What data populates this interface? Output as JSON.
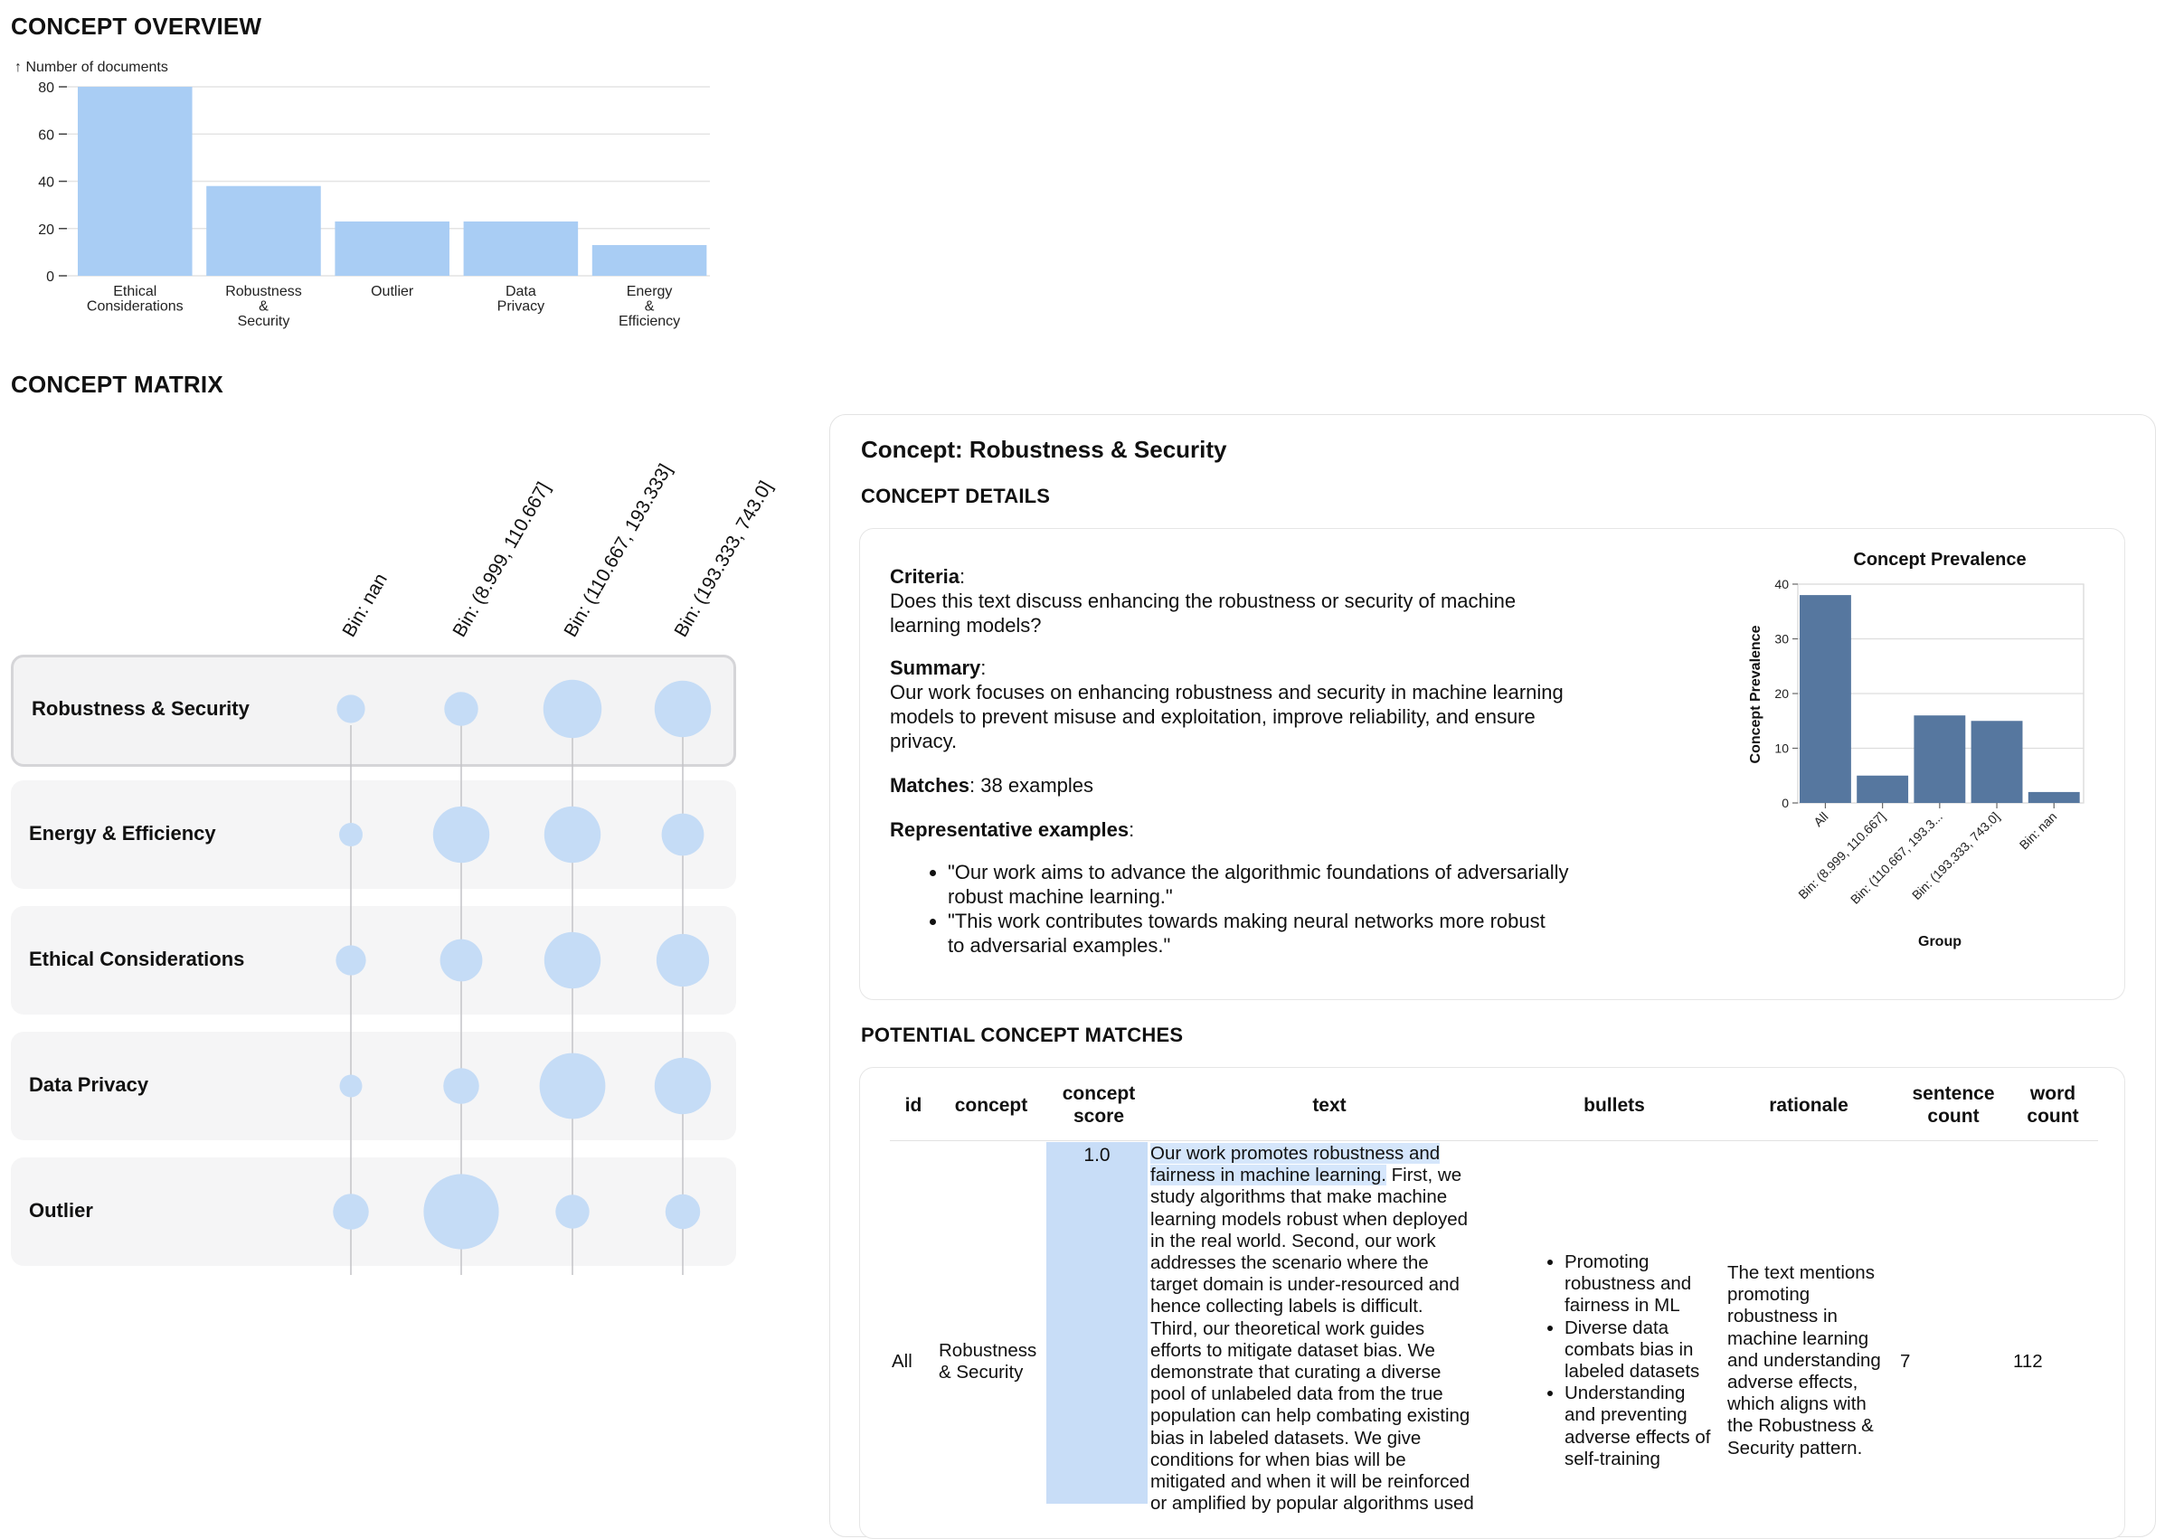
{
  "overview": {
    "title": "CONCEPT OVERVIEW",
    "ylabel": "↑ Number of documents"
  },
  "chart_data": [
    {
      "type": "bar",
      "title": "",
      "ylabel": "Number of documents",
      "xlabel": "",
      "categories": [
        [
          "Ethical",
          "Considerations"
        ],
        [
          "Robustness",
          "&",
          "Security"
        ],
        [
          "Outlier"
        ],
        [
          "Data",
          "Privacy"
        ],
        [
          "Energy",
          "&",
          "Efficiency"
        ]
      ],
      "values": [
        80,
        38,
        23,
        23,
        13
      ],
      "ylim": [
        0,
        80
      ],
      "yticks": [
        0,
        20,
        40,
        60,
        80
      ],
      "grid": true,
      "color": "#a9cdf4"
    },
    {
      "type": "bar",
      "title": "Concept Prevalence",
      "xlabel": "Group",
      "ylabel": "Concept Prevalence",
      "categories": [
        "All",
        "Bin: (8.999, 110.667]",
        "Bin: (110.667, 193.3...",
        "Bin: (193.333, 743.0]",
        "Bin: nan"
      ],
      "values": [
        38,
        5,
        16,
        15,
        2
      ],
      "ylim": [
        0,
        40
      ],
      "yticks": [
        0,
        10,
        20,
        30,
        40
      ],
      "grid": true,
      "color": "#56779f"
    }
  ],
  "matrix": {
    "title": "CONCEPT MATRIX",
    "columns": [
      "Bin: nan",
      "Bin: (8.999, 110.667]",
      "Bin: (110.667, 193.333]",
      "Bin: (193.333, 743.0]"
    ],
    "rows": [
      {
        "label": "Robustness & Security",
        "selected": true,
        "sizes": [
          0.3,
          0.36,
          0.62,
          0.6
        ]
      },
      {
        "label": "Energy & Efficiency",
        "selected": false,
        "sizes": [
          0.25,
          0.6,
          0.6,
          0.45
        ]
      },
      {
        "label": "Ethical Considerations",
        "selected": false,
        "sizes": [
          0.32,
          0.45,
          0.6,
          0.56
        ]
      },
      {
        "label": "Data Privacy",
        "selected": false,
        "sizes": [
          0.24,
          0.38,
          0.7,
          0.6
        ]
      },
      {
        "label": "Outlier",
        "selected": false,
        "sizes": [
          0.38,
          0.8,
          0.36,
          0.37
        ]
      }
    ],
    "bubble_color": "#c5dcf6"
  },
  "concept": {
    "heading": "Concept: Robustness & Security",
    "details_title": "CONCEPT DETAILS",
    "criteria_label": "Criteria",
    "criteria_lines": [
      "Does this text discuss enhancing the robustness or security of machine",
      "learning models?"
    ],
    "summary_label": "Summary",
    "summary_lines": [
      "Our work focuses on enhancing robustness and security in machine learning",
      "models to prevent misuse and exploitation, improve reliability, and ensure",
      "privacy."
    ],
    "matches_label": "Matches",
    "matches_value": ": 38 examples",
    "rep_label": "Representative examples",
    "rep_examples": [
      [
        "\"Our work aims to advance the algorithmic foundations of adversarially",
        "robust machine learning.\""
      ],
      [
        "\"This work contributes towards making neural networks more robust",
        "to adversarial examples.\""
      ]
    ]
  },
  "matches": {
    "title": "POTENTIAL CONCEPT MATCHES",
    "headers": {
      "id": "id",
      "concept": "concept",
      "score": [
        "concept",
        "score"
      ],
      "text": "text",
      "bullets": "bullets",
      "rationale": "rationale",
      "sentence_count": [
        "sentence",
        "count"
      ],
      "word_count": [
        "word",
        "count"
      ]
    },
    "row": {
      "id": "All",
      "concept_lines": [
        "Robustness",
        "& Security"
      ],
      "score": "1.0",
      "score_fraction": 1.0,
      "text_highlight_lines": [
        "Our work promotes robustness and",
        "fairness in machine learning."
      ],
      "text_rest_first": " First, we",
      "text_lines": [
        "study algorithms that make machine",
        "learning models robust when deployed",
        "in the real world. Second, our work",
        "addresses the scenario where the",
        "target domain is under-resourced and",
        "hence collecting labels is difficult.",
        "Third, our theoretical work guides",
        "efforts to mitigate dataset bias. We",
        "demonstrate that curating a diverse",
        "pool of unlabeled data from the true",
        "population can help combating existing",
        "bias in labeled datasets. We give",
        "conditions for when bias will be",
        "mitigated and when it will be reinforced",
        "or amplified by popular algorithms used"
      ],
      "bullets": [
        [
          "Promoting",
          "robustness and",
          "fairness in ML"
        ],
        [
          "Diverse data",
          "combats bias in",
          "labeled datasets"
        ],
        [
          "Understanding",
          "and preventing",
          "adverse effects of",
          "self-training"
        ]
      ],
      "rationale_lines": [
        "The text mentions",
        "promoting",
        "robustness in",
        "machine learning",
        "and understanding",
        "adverse effects,",
        "which aligns with",
        "the Robustness &",
        "Security pattern."
      ],
      "sentence_count": "7",
      "word_count": "112"
    }
  }
}
